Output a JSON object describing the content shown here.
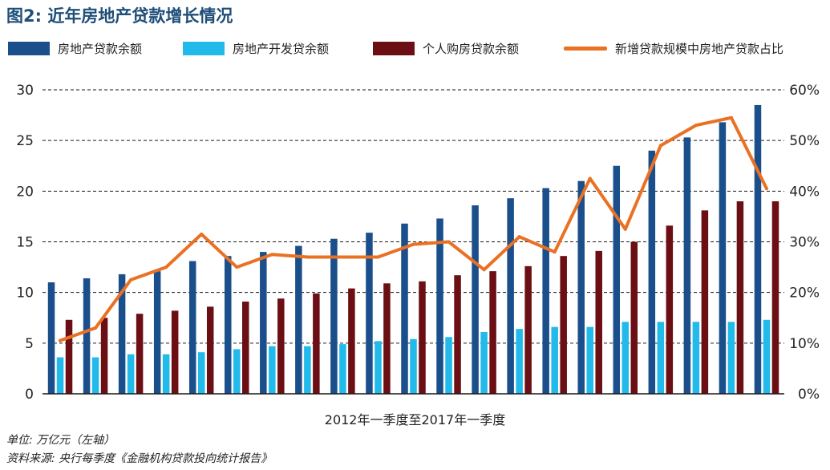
{
  "title": "图2: 近年房地产贷款增长情况",
  "legend": {
    "s1": "房地产贷款余额",
    "s2": "房地产开发贷余额",
    "s3": "个人购房贷款余额",
    "s4": "新增贷款规模中房地产贷款占比"
  },
  "colors": {
    "s1": "#1a4f8b",
    "s2": "#22b9eb",
    "s3": "#6b0f14",
    "s4": "#ea7124"
  },
  "notes": {
    "unit": "单位: 万亿元（左轴）",
    "source": "资料来源: 央行每季度《金融机构贷款投向统计报告》"
  },
  "chart_data": {
    "type": "bar",
    "title": "图2: 近年房地产贷款增长情况",
    "xlabel": "2012年一季度至2017年一季度",
    "ylabel": "",
    "ylim": [
      0,
      30
    ],
    "y2lim": [
      0,
      60
    ],
    "yticks": [
      "0",
      "5",
      "10",
      "15",
      "20",
      "25",
      "30"
    ],
    "y2ticks": [
      "0%",
      "10%",
      "20%",
      "30%",
      "40%",
      "50%",
      "60%"
    ],
    "grid": true,
    "legend_position": "top",
    "n_categories": 21,
    "series": [
      {
        "name": "房地产贷款余额",
        "type": "bar",
        "axis": "left",
        "values": [
          11.0,
          11.4,
          11.8,
          12.1,
          13.1,
          13.6,
          14.0,
          14.6,
          15.3,
          15.9,
          16.8,
          17.3,
          18.6,
          19.3,
          20.3,
          21.0,
          22.5,
          24.0,
          25.3,
          26.8,
          28.5
        ]
      },
      {
        "name": "房地产开发贷余额",
        "type": "bar",
        "axis": "left",
        "values": [
          3.6,
          3.6,
          3.9,
          3.9,
          4.1,
          4.4,
          4.7,
          4.7,
          4.9,
          5.2,
          5.4,
          5.6,
          6.1,
          6.4,
          6.6,
          6.6,
          7.1,
          7.1,
          7.1,
          7.1,
          7.3
        ]
      },
      {
        "name": "个人购房贷款余额",
        "type": "bar",
        "axis": "left",
        "values": [
          7.3,
          7.5,
          7.9,
          8.2,
          8.6,
          9.1,
          9.4,
          9.9,
          10.4,
          10.9,
          11.1,
          11.7,
          12.1,
          12.6,
          13.6,
          14.1,
          15.0,
          16.6,
          18.1,
          19.0,
          19.0
        ]
      },
      {
        "name": "新增贷款规模中房地产贷款占比",
        "type": "line",
        "axis": "right",
        "unit": "%",
        "values": [
          10.5,
          13.0,
          22.5,
          25.0,
          31.5,
          25.0,
          27.5,
          27.0,
          27.0,
          27.0,
          29.5,
          30.0,
          24.5,
          31.0,
          28.0,
          42.5,
          32.5,
          49.0,
          53.0,
          54.5,
          40.5
        ]
      }
    ]
  }
}
